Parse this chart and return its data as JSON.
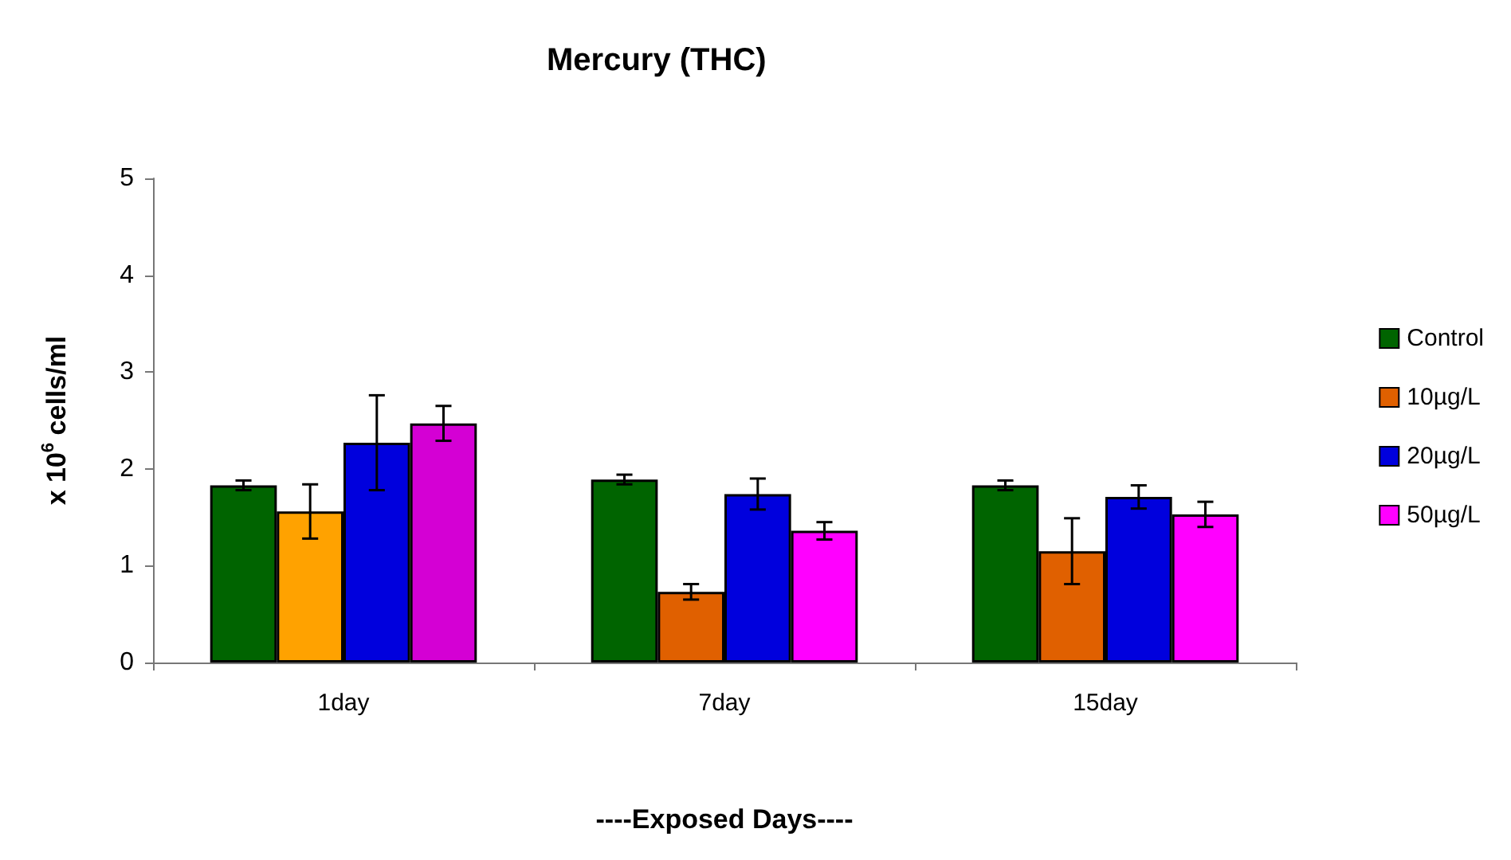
{
  "chart_data": {
    "type": "bar",
    "title": "Mercury (THC)",
    "xlabel": "----Exposed Days----",
    "ylabel": "x 10$^{6}$ cells/ml",
    "categories": [
      "1day",
      "7day",
      "15day"
    ],
    "series": [
      {
        "name": "Control",
        "color": "#006400",
        "values": [
          1.83,
          1.89,
          1.83
        ],
        "errors": [
          0.05,
          0.05,
          0.05
        ]
      },
      {
        "name": "10µg/L",
        "color": "#e06000",
        "colors": [
          "#ffa200",
          "#e06000",
          "#e06000"
        ],
        "values": [
          1.56,
          0.73,
          1.15
        ],
        "errors": [
          0.28,
          0.08,
          0.34
        ]
      },
      {
        "name": "20µg/L",
        "color": "#0000dd",
        "values": [
          2.27,
          1.74,
          1.71
        ],
        "errors": [
          0.49,
          0.16,
          0.12
        ]
      },
      {
        "name": "50µg/L",
        "color": "#ff00ff",
        "colors": [
          "#d400d4",
          "#ff00ff",
          "#ff00ff"
        ],
        "values": [
          2.47,
          1.36,
          1.53
        ],
        "errors": [
          0.18,
          0.09,
          0.13
        ]
      }
    ],
    "ylim": [
      0,
      5
    ],
    "yticks": [
      0,
      1,
      2,
      3,
      4,
      5
    ],
    "grid": false,
    "legend": "right"
  }
}
